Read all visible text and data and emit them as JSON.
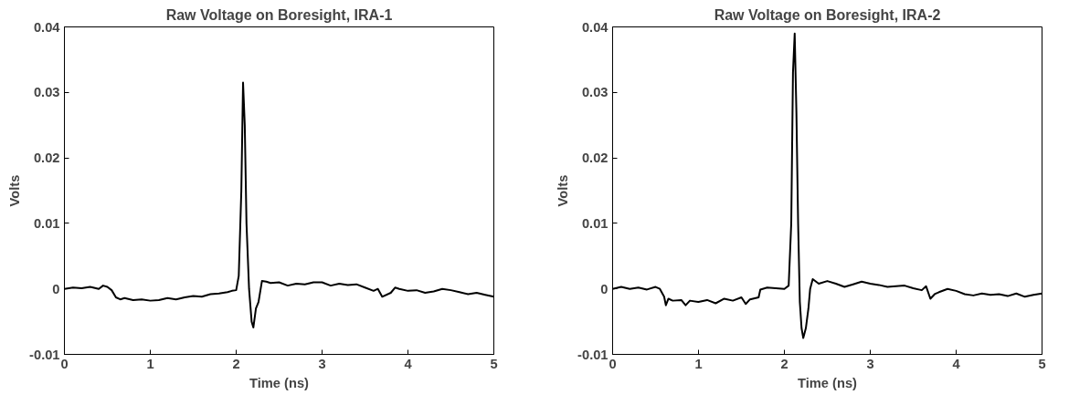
{
  "chart_data": [
    {
      "type": "line",
      "title": "Raw Voltage on Boresight, IRA-1",
      "xlabel": "Time (ns)",
      "ylabel": "Volts",
      "xlim": [
        0,
        5
      ],
      "ylim": [
        -0.01,
        0.04
      ],
      "xticks": [
        0,
        1,
        2,
        3,
        4,
        5
      ],
      "yticks": [
        -0.01,
        0,
        0.01,
        0.02,
        0.03,
        0.04
      ],
      "grid": false,
      "series": [
        {
          "color": "#000000",
          "x": [
            0,
            0.1,
            0.2,
            0.3,
            0.4,
            0.45,
            0.5,
            0.55,
            0.6,
            0.65,
            0.7,
            0.8,
            0.9,
            1.0,
            1.1,
            1.2,
            1.3,
            1.4,
            1.5,
            1.6,
            1.7,
            1.8,
            1.9,
            1.95,
            2.0,
            2.03,
            2.06,
            2.08,
            2.1,
            2.12,
            2.15,
            2.18,
            2.2,
            2.23,
            2.26,
            2.3,
            2.35,
            2.4,
            2.5,
            2.6,
            2.7,
            2.8,
            2.9,
            3.0,
            3.1,
            3.2,
            3.3,
            3.4,
            3.5,
            3.6,
            3.65,
            3.7,
            3.8,
            3.85,
            3.9,
            4.0,
            4.1,
            4.2,
            4.3,
            4.4,
            4.5,
            4.6,
            4.7,
            4.8,
            4.9,
            5.0
          ],
          "values": [
            0,
            0.0002,
            0.0001,
            0.0003,
            0,
            0.0005,
            0.0003,
            -0.0002,
            -0.0013,
            -0.0016,
            -0.0014,
            -0.0017,
            -0.0016,
            -0.0018,
            -0.0017,
            -0.0014,
            -0.0016,
            -0.0013,
            -0.0011,
            -0.0012,
            -0.0008,
            -0.0007,
            -0.0005,
            -0.0003,
            -0.0002,
            0.002,
            0.015,
            0.0315,
            0.025,
            0.01,
            0.0,
            -0.005,
            -0.0059,
            -0.003,
            -0.002,
            0.0012,
            0.0011,
            0.0009,
            0.001,
            0.0005,
            0.0008,
            0.0007,
            0.001,
            0.001,
            0.0005,
            0.0008,
            0.0006,
            0.0007,
            0.0002,
            -0.0003,
            0.0,
            -0.0012,
            -0.0006,
            0.0002,
            0.0,
            -0.0003,
            -0.0002,
            -0.0006,
            -0.0004,
            0.0,
            -0.0002,
            -0.0005,
            -0.0008,
            -0.0006,
            -0.0009,
            -0.0012
          ]
        }
      ]
    },
    {
      "type": "line",
      "title": "Raw Voltage on Boresight, IRA-2",
      "xlabel": "Time (ns)",
      "ylabel": "Volts",
      "xlim": [
        0,
        5
      ],
      "ylim": [
        -0.01,
        0.04
      ],
      "xticks": [
        0,
        1,
        2,
        3,
        4,
        5
      ],
      "yticks": [
        -0.01,
        0,
        0.01,
        0.02,
        0.03,
        0.04
      ],
      "grid": false,
      "series": [
        {
          "color": "#000000",
          "x": [
            0,
            0.1,
            0.2,
            0.3,
            0.4,
            0.5,
            0.55,
            0.6,
            0.62,
            0.65,
            0.7,
            0.8,
            0.85,
            0.9,
            1.0,
            1.1,
            1.2,
            1.3,
            1.4,
            1.5,
            1.55,
            1.6,
            1.7,
            1.72,
            1.8,
            1.9,
            2.0,
            2.05,
            2.08,
            2.1,
            2.12,
            2.14,
            2.16,
            2.18,
            2.2,
            2.22,
            2.25,
            2.28,
            2.3,
            2.33,
            2.4,
            2.5,
            2.6,
            2.7,
            2.8,
            2.9,
            3.0,
            3.1,
            3.2,
            3.3,
            3.4,
            3.5,
            3.6,
            3.65,
            3.7,
            3.75,
            3.8,
            3.9,
            4.0,
            4.1,
            4.2,
            4.3,
            4.4,
            4.5,
            4.6,
            4.7,
            4.8,
            4.9,
            5.0
          ],
          "values": [
            0,
            0.0003,
            0,
            0.0002,
            -0.0001,
            0.0003,
            0,
            -0.0012,
            -0.0025,
            -0.0015,
            -0.0018,
            -0.0017,
            -0.0025,
            -0.0018,
            -0.002,
            -0.0017,
            -0.0022,
            -0.0015,
            -0.0018,
            -0.0013,
            -0.0023,
            -0.0016,
            -0.0013,
            -0.0001,
            0.0002,
            0.0001,
            0,
            0.0005,
            0.01,
            0.033,
            0.039,
            0.027,
            0.01,
            -0.002,
            -0.006,
            -0.0075,
            -0.006,
            -0.003,
            0.0,
            0.0015,
            0.0008,
            0.0012,
            0.0008,
            0.0003,
            0.0007,
            0.0011,
            0.0008,
            0.0006,
            0.0003,
            0.0004,
            0.0005,
            0.0001,
            -0.0002,
            0.0004,
            -0.0015,
            -0.0008,
            -0.0005,
            0.0,
            -0.0003,
            -0.0008,
            -0.001,
            -0.0007,
            -0.0009,
            -0.0008,
            -0.0011,
            -0.0007,
            -0.0012,
            -0.0009,
            -0.0007
          ]
        }
      ]
    }
  ]
}
